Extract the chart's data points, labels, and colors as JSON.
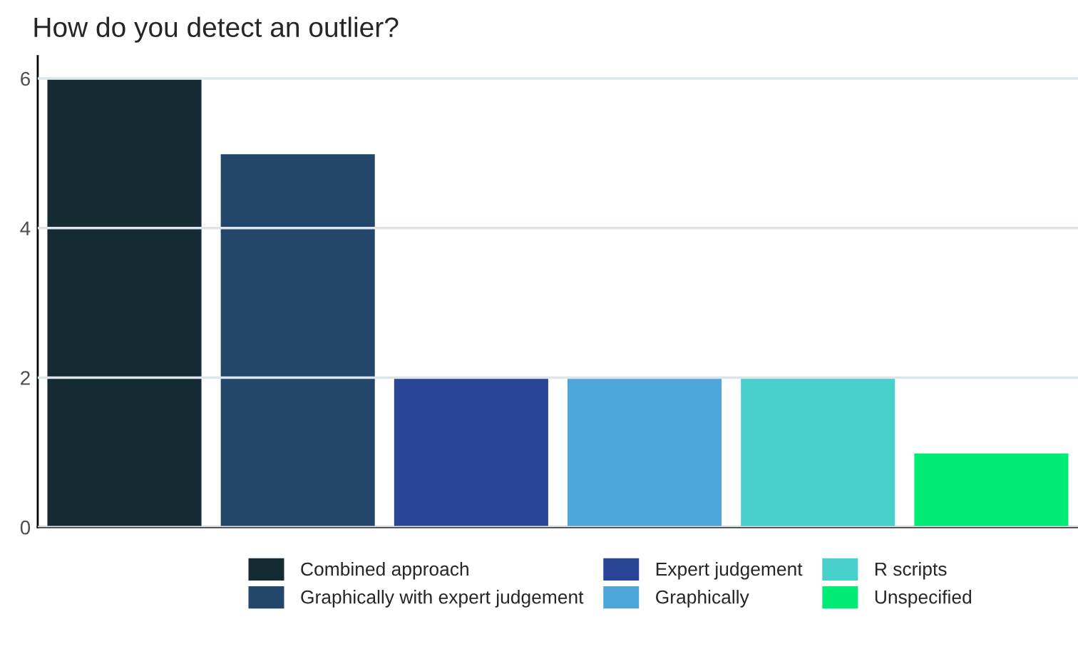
{
  "chart_data": {
    "type": "bar",
    "title": "How do you detect an outlier?",
    "categories": [
      null,
      null,
      null,
      null,
      null,
      null
    ],
    "series": [
      {
        "name": "Combined approach",
        "color": "#152b33",
        "values": [
          6,
          null,
          null,
          null,
          null,
          null
        ]
      },
      {
        "name": "Graphically with expert judgement",
        "color": "#22476b",
        "values": [
          null,
          5,
          null,
          null,
          null,
          null
        ]
      },
      {
        "name": "Expert judgement",
        "color": "#2a4596",
        "values": [
          null,
          null,
          2,
          null,
          null,
          null
        ]
      },
      {
        "name": "Graphically",
        "color": "#4fa6d9",
        "values": [
          null,
          null,
          null,
          2,
          null,
          null
        ]
      },
      {
        "name": "R scripts",
        "color": "#47d0cc",
        "values": [
          null,
          null,
          null,
          null,
          2,
          null
        ]
      },
      {
        "name": "Unspecified",
        "color": "#00ec77",
        "values": [
          null,
          null,
          null,
          null,
          null,
          1
        ]
      }
    ],
    "ylim": [
      0,
      6.3
    ],
    "yticks": [
      0,
      2,
      4,
      6
    ],
    "grid": "y",
    "legend": "bottom"
  }
}
